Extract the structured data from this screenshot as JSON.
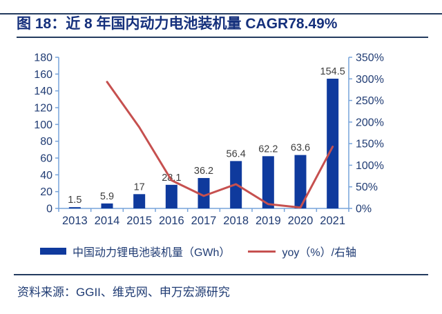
{
  "header": {
    "title": "图 18：近 8 年国内动力电池装机量 CAGR78.49%"
  },
  "footer": {
    "source": "资料来源：GGII、维克网、申万宏源研究"
  },
  "colors": {
    "bar": "#0F3A9D",
    "line": "#C6504F",
    "axis": "#76A3DA",
    "tick_label": "#1F3B73",
    "data_label": "#3D3D3D",
    "title_text": "#15307C",
    "rule": "#223A5E"
  },
  "chart_data": {
    "type": "combo-bar-line",
    "categories": [
      "2013",
      "2014",
      "2015",
      "2016",
      "2017",
      "2018",
      "2019",
      "2020",
      "2021"
    ],
    "series": [
      {
        "name": "中国动力锂电池装机量（GWh）",
        "chart": "bar",
        "axis": "left",
        "values": [
          1.5,
          5.9,
          17,
          28.1,
          36.2,
          56.4,
          62.2,
          63.6,
          154.5
        ],
        "data_labels": [
          "1.5",
          "5.9",
          "17",
          "28.1",
          "36.2",
          "56.4",
          "62.2",
          "63.6",
          "154.5"
        ]
      },
      {
        "name": "yoy（%）/右轴",
        "chart": "line",
        "axis": "right",
        "values": [
          null,
          293,
          188,
          65,
          29,
          56,
          10,
          2,
          143
        ]
      }
    ],
    "left_axis": {
      "min": 0,
      "max": 180,
      "step": 20,
      "tick_labels": [
        "0",
        "20",
        "40",
        "60",
        "80",
        "100",
        "120",
        "140",
        "160",
        "180"
      ]
    },
    "right_axis": {
      "min": 0,
      "max": 350,
      "step": 50,
      "tick_labels": [
        "0%",
        "50%",
        "100%",
        "150%",
        "200%",
        "250%",
        "300%",
        "350%"
      ]
    },
    "grid": false,
    "legend_position": "bottom"
  }
}
